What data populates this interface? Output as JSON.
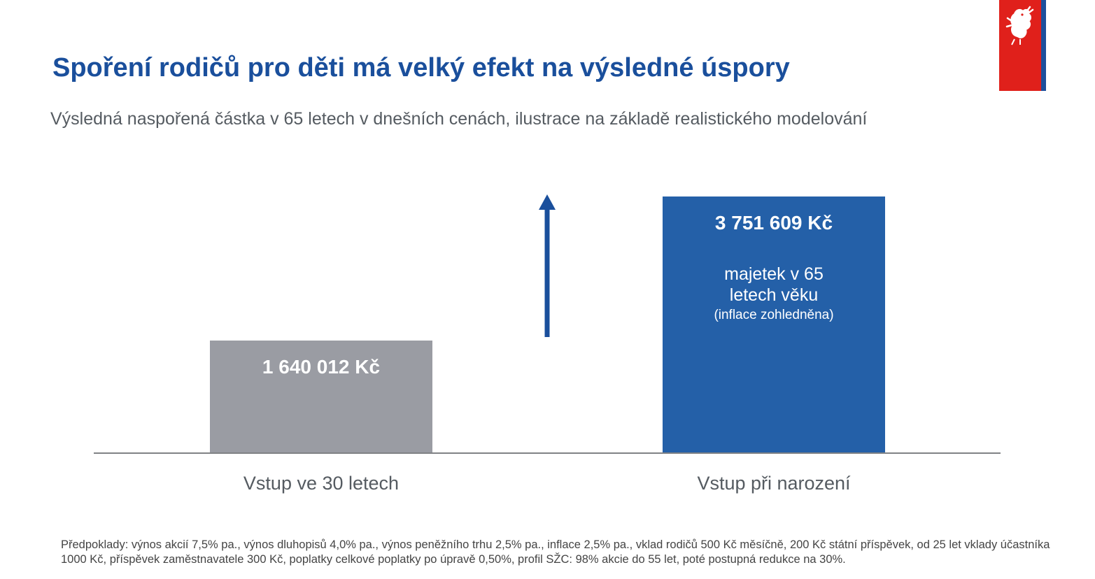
{
  "title": "Spoření rodičů pro děti má velký efekt na výsledné úspory",
  "subtitle": "Výsledná naspořená částka v 65 letech v dnešních cenách, ilustrace na základě realistického modelování",
  "footnote": "Předpoklady: výnos akcií 7,5% pa., výnos dluhopisů 4,0% pa., výnos peněžního trhu 2,5% pa., inflace 2,5% pa., vklad rodičů 500 Kč měsíčně, 200 Kč státní příspěvek, od 25 let vklady účastníka 1000 Kč, příspěvek zaměstnavatele 300 Kč, poplatky celkové poplatky po úpravě 0,50%, profil SŽC: 98% akcie do 55 let, poté postupná redukce na 30%.",
  "logo_icon": "czech-lion-emblem-icon",
  "chart_data": {
    "type": "bar",
    "title": "",
    "xlabel": "",
    "ylabel": "",
    "ylim": [
      0,
      3751609
    ],
    "grid": false,
    "categories": [
      "Vstup ve 30 letech",
      "Vstup při narození"
    ],
    "values": [
      1640012,
      3751609
    ],
    "value_labels": [
      "1 640 012 Kč",
      "3 751 609 Kč"
    ],
    "bar_colors": [
      "#9a9ca3",
      "#2460a8"
    ],
    "annotation": {
      "lines": [
        "majetek v 65",
        "letech věku"
      ],
      "note": "(inflace zohledněna)"
    },
    "arrow": {
      "direction": "up",
      "icon": "up-arrow-icon",
      "color": "#1a4f9c"
    },
    "axis_color": "#808285"
  }
}
